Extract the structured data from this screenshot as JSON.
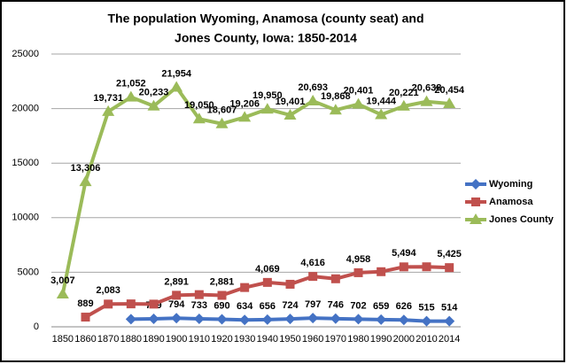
{
  "chart_data": {
    "type": "line",
    "title": [
      "The population Wyoming, Anamosa (county seat) and",
      "Jones County, Iowa:  1850-2014"
    ],
    "categories": [
      "1850",
      "1860",
      "1870",
      "1880",
      "1890",
      "1900",
      "1910",
      "1920",
      "1930",
      "1940",
      "1950",
      "1960",
      "1970",
      "1980",
      "1990",
      "2000",
      "2010",
      "2014"
    ],
    "series": [
      {
        "name": "Wyoming",
        "color": "#4472c4",
        "marker": "diamond",
        "values": [
          null,
          null,
          null,
          700,
          729,
          794,
          733,
          690,
          634,
          656,
          724,
          797,
          746,
          702,
          659,
          626,
          515,
          514
        ],
        "value_labels": [
          null,
          null,
          null,
          null,
          "729",
          "794",
          "733",
          "690",
          "634",
          "656",
          "724",
          "797",
          "746",
          "702",
          "659",
          "626",
          "515",
          "514"
        ]
      },
      {
        "name": "Anamosa",
        "color": "#c0504d",
        "marker": "square",
        "values": [
          null,
          889,
          2083,
          2100,
          2080,
          2891,
          2950,
          2881,
          3600,
          4069,
          3900,
          4616,
          4400,
          4958,
          5050,
          5494,
          5500,
          5425
        ],
        "value_labels": [
          null,
          "889",
          "2,083",
          null,
          null,
          "2,891",
          null,
          "2,881",
          null,
          "4,069",
          null,
          "4,616",
          null,
          "4,958",
          null,
          "5,494",
          null,
          "5,425"
        ]
      },
      {
        "name": "Jones County",
        "color": "#9bbb59",
        "marker": "triangle",
        "values": [
          3007,
          13306,
          19731,
          21052,
          20233,
          21954,
          19050,
          18607,
          19206,
          19950,
          19401,
          20693,
          19868,
          20401,
          19444,
          20221,
          20638,
          20454
        ],
        "value_labels": [
          "3,007",
          "13,306",
          "19,731",
          "21,052",
          "20,233",
          "21,954",
          "19,050",
          "18,607",
          "19,206",
          "19,950",
          "19,401",
          "20,693",
          "19,868",
          "20,401",
          "19,444",
          "20,221",
          "20,638",
          "20,454"
        ]
      }
    ],
    "ylim": [
      0,
      25000
    ],
    "yticks": [
      0,
      5000,
      10000,
      15000,
      20000,
      25000
    ],
    "grid": true,
    "legend": "right"
  }
}
